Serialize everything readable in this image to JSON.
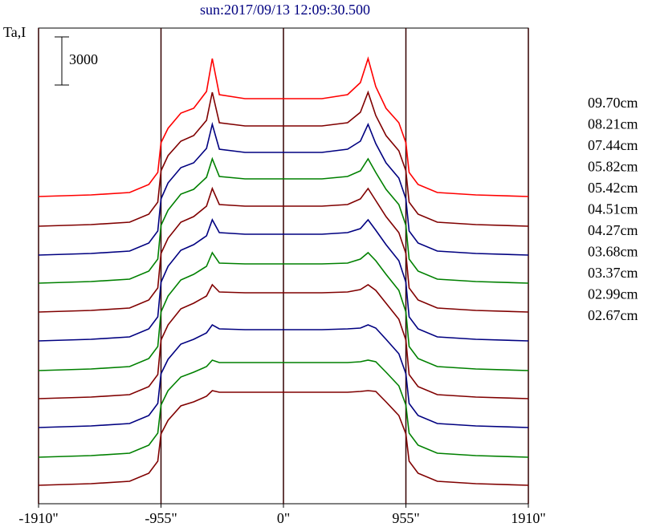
{
  "chart_data": {
    "type": "line",
    "title": "sun:2017/09/13 12:09:30.500",
    "y_label": "Ta,I",
    "scale_bar": 3000,
    "x": [
      -1910,
      -1500,
      -1200,
      -1050,
      -980,
      -955,
      -900,
      -800,
      -700,
      -600,
      -555,
      -500,
      -300,
      0,
      300,
      500,
      600,
      660,
      720,
      800,
      900,
      955,
      980,
      1050,
      1200,
      1500,
      1910
    ],
    "xlim": [
      -1910,
      1910
    ],
    "xticks": [
      {
        "value": -1910,
        "label": "-1910\""
      },
      {
        "value": -955,
        "label": "-955\""
      },
      {
        "value": 0,
        "label": "0\""
      },
      {
        "value": 955,
        "label": "955\""
      },
      {
        "value": 1910,
        "label": "1910\""
      }
    ],
    "ylim": [
      0,
      29650
    ],
    "grid": true,
    "legend": "right",
    "series": [
      {
        "name": "09.70cm",
        "color": "#ff0000",
        "values": [
          19150,
          19250,
          19400,
          19900,
          20650,
          22500,
          23400,
          24350,
          24650,
          25700,
          27750,
          25500,
          25250,
          25250,
          25250,
          25500,
          26250,
          27750,
          26000,
          24650,
          23750,
          22500,
          20650,
          19900,
          19400,
          19250,
          19150
        ]
      },
      {
        "name": "08.21cm",
        "color": "#800000",
        "values": [
          17300,
          17400,
          17550,
          18050,
          18800,
          20750,
          21700,
          22600,
          22950,
          23900,
          25650,
          23750,
          23550,
          23550,
          23550,
          23750,
          24400,
          25650,
          24200,
          22950,
          22000,
          20750,
          18800,
          18050,
          17550,
          17400,
          17300
        ]
      },
      {
        "name": "07.44cm",
        "color": "#000080",
        "values": [
          15500,
          15600,
          15750,
          16250,
          17000,
          19000,
          20000,
          20950,
          21250,
          22150,
          23650,
          22100,
          21900,
          21900,
          21900,
          22100,
          22600,
          23650,
          22450,
          21250,
          20300,
          19000,
          17000,
          16250,
          15750,
          15600,
          15500
        ]
      },
      {
        "name": "05.82cm",
        "color": "#008000",
        "values": [
          13750,
          13850,
          14000,
          14500,
          15250,
          17350,
          18300,
          19300,
          19600,
          20350,
          21500,
          20400,
          20250,
          20250,
          20250,
          20400,
          20750,
          21500,
          20650,
          19600,
          18650,
          17350,
          15250,
          14500,
          14000,
          13850,
          13750
        ]
      },
      {
        "name": "05.42cm",
        "color": "#800000",
        "values": [
          11950,
          12050,
          12200,
          12700,
          13450,
          15600,
          16550,
          17550,
          17900,
          18550,
          19650,
          18650,
          18550,
          18550,
          18550,
          18650,
          19000,
          19650,
          18900,
          17900,
          16900,
          15600,
          13450,
          12700,
          12200,
          12050,
          11950
        ]
      },
      {
        "name": "04.51cm",
        "color": "#000080",
        "values": [
          10150,
          10250,
          10400,
          10900,
          11650,
          13800,
          14800,
          15800,
          16150,
          16700,
          17700,
          16900,
          16800,
          16800,
          16800,
          16900,
          17150,
          17700,
          17050,
          16150,
          15150,
          13800,
          11650,
          10900,
          10400,
          10250,
          10150
        ]
      },
      {
        "name": "04.27cm",
        "color": "#008000",
        "values": [
          8300,
          8400,
          8550,
          9050,
          9800,
          11950,
          12950,
          13950,
          14300,
          14800,
          15650,
          15000,
          14950,
          14950,
          14950,
          15000,
          15250,
          15650,
          15150,
          14300,
          13300,
          11950,
          9800,
          9050,
          8550,
          8400,
          8300
        ]
      },
      {
        "name": "03.68cm",
        "color": "#800000",
        "values": [
          6550,
          6650,
          6800,
          7300,
          8050,
          10200,
          11150,
          12150,
          12500,
          12950,
          13650,
          13200,
          13150,
          13150,
          13150,
          13200,
          13350,
          13650,
          13300,
          12500,
          11500,
          10200,
          8050,
          7300,
          6800,
          6650,
          6550
        ]
      },
      {
        "name": "03.37cm",
        "color": "#000080",
        "values": [
          4750,
          4850,
          5000,
          5500,
          6250,
          8100,
          9000,
          9950,
          10250,
          10650,
          11150,
          10900,
          10850,
          10850,
          10850,
          10900,
          10950,
          11150,
          10950,
          10250,
          9350,
          8100,
          6250,
          5500,
          5000,
          4850,
          4750
        ]
      },
      {
        "name": "02.99cm",
        "color": "#008000",
        "values": [
          2900,
          3000,
          3150,
          3650,
          4400,
          6150,
          7050,
          7900,
          8200,
          8550,
          8950,
          8800,
          8800,
          8800,
          8800,
          8800,
          8850,
          8950,
          8850,
          8200,
          7350,
          6150,
          4400,
          3650,
          3150,
          3000,
          2900
        ]
      },
      {
        "name": "02.67cm",
        "color": "#800000",
        "values": [
          1150,
          1250,
          1400,
          1900,
          2650,
          4350,
          5200,
          6100,
          6350,
          6700,
          7050,
          6950,
          6950,
          6950,
          6950,
          6950,
          7000,
          7050,
          7000,
          6350,
          5500,
          4350,
          2650,
          1900,
          1400,
          1250,
          1150
        ]
      }
    ]
  }
}
